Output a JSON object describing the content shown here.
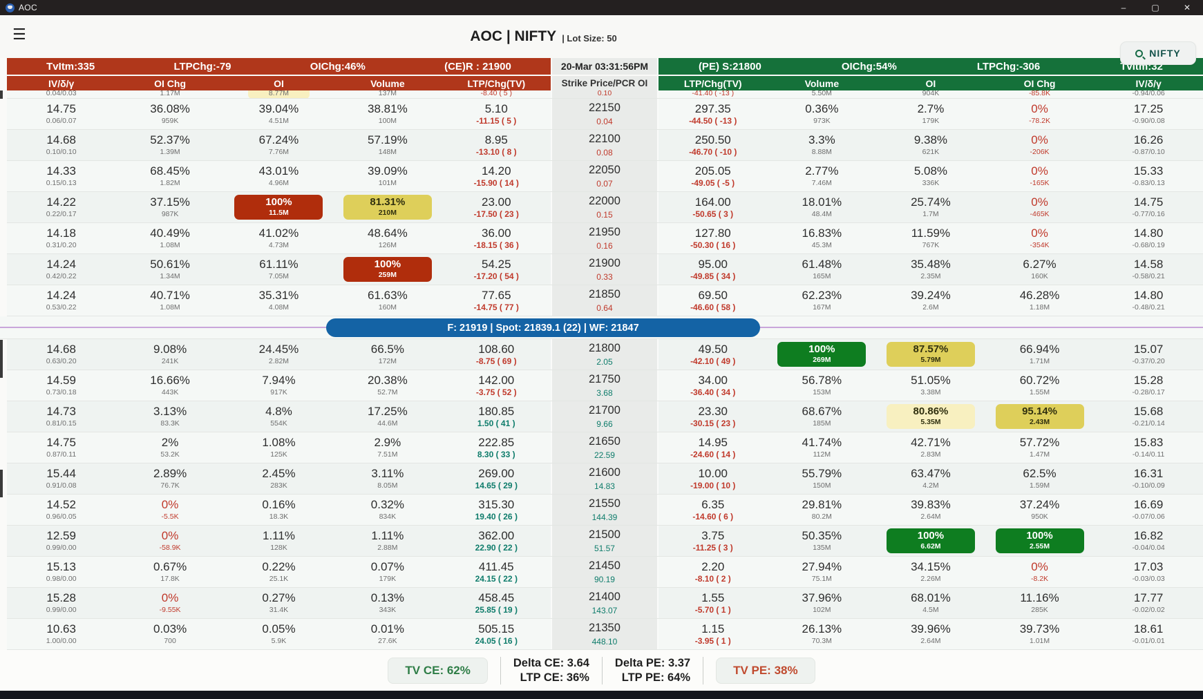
{
  "window": {
    "title": "AOC",
    "minimize": "–",
    "maximize": "▢",
    "close": "✕"
  },
  "header": {
    "title": "AOC | NIFTY",
    "subtitle": "| Lot Size: 50",
    "search_label": "NIFTY"
  },
  "summary": {
    "ce": {
      "tvitm": "TvItm:335",
      "ltpchg": "LTPChg:-79",
      "oichg": "OIChg:46%",
      "resistance": "(CE)R : 21900"
    },
    "timestamp": "20-Mar 03:31:56PM",
    "pe": {
      "support": "(PE) S:21800",
      "oichg": "OIChg:54%",
      "ltpchg": "LTPChg:-306",
      "tvitm": "TvItm:32"
    }
  },
  "columns": {
    "ce": [
      "IV/δ/γ",
      "OI Chg",
      "OI",
      "Volume",
      "LTP/Chg(TV)"
    ],
    "strike": "Strike Price/PCR OI",
    "pe": [
      "LTP/Chg(TV)",
      "Volume",
      "OI",
      "OI Chg",
      "IV/δ/γ"
    ]
  },
  "future_bar": {
    "text": "F: 21919  |  Spot: 21839.1 (22)  |  WF: 21847"
  },
  "footer": {
    "tv_ce": "TV CE: 62%",
    "delta_ce": "Delta CE: 3.64",
    "ltp_ce": "LTP CE: 36%",
    "delta_pe": "Delta PE: 3.37",
    "ltp_pe": "LTP PE: 64%",
    "tv_pe": "TV PE: 38%"
  },
  "table": {
    "partial_row": {
      "ce": [
        {
          "t": "0.04/0.03"
        },
        {
          "t": "1.17M"
        },
        {
          "t": "8.77M",
          "pale": true
        },
        {
          "t": "137M"
        },
        {
          "t": "-8.40 ( 5 )",
          "red": true
        }
      ],
      "strike": {
        "t": "0.10",
        "red": true
      },
      "pe": [
        {
          "t": "-41.40 ( -13 )",
          "red": true
        },
        {
          "t": "5.50M"
        },
        {
          "t": "904K"
        },
        {
          "t": "-85.8K",
          "red": true
        },
        {
          "t": "-0.94/0.06"
        }
      ]
    },
    "rows": [
      {
        "strike": "22150",
        "pcr": "0.04",
        "pc": "red",
        "ce": [
          {
            "v": "14.75",
            "s": "0.06/0.07"
          },
          {
            "v": "36.08%",
            "s": "959K"
          },
          {
            "v": "39.04%",
            "s": "4.51M"
          },
          {
            "v": "38.81%",
            "s": "100M"
          },
          {
            "v": "5.10",
            "s": "-11.15 ( 5 )",
            "sc": "red"
          }
        ],
        "pe": [
          {
            "v": "297.35",
            "s": "-44.50 ( -13 )",
            "sc": "red"
          },
          {
            "v": "0.36%",
            "s": "973K"
          },
          {
            "v": "2.7%",
            "s": "179K"
          },
          {
            "v": "0%",
            "vc": "red",
            "s": "-78.2K",
            "sc": "red"
          },
          {
            "v": "17.25",
            "s": "-0.90/0.08"
          }
        ]
      },
      {
        "strike": "22100",
        "pcr": "0.08",
        "pc": "red",
        "ce": [
          {
            "v": "14.68",
            "s": "0.10/0.10"
          },
          {
            "v": "52.37%",
            "s": "1.39M"
          },
          {
            "v": "67.24%",
            "s": "7.76M"
          },
          {
            "v": "57.19%",
            "s": "148M"
          },
          {
            "v": "8.95",
            "s": "-13.10 ( 8 )",
            "sc": "red"
          }
        ],
        "pe": [
          {
            "v": "250.50",
            "s": "-46.70 ( -10 )",
            "sc": "red"
          },
          {
            "v": "3.3%",
            "s": "8.88M"
          },
          {
            "v": "9.38%",
            "s": "621K"
          },
          {
            "v": "0%",
            "vc": "red",
            "s": "-206K",
            "sc": "red"
          },
          {
            "v": "16.26",
            "s": "-0.87/0.10"
          }
        ]
      },
      {
        "strike": "22050",
        "pcr": "0.07",
        "pc": "red",
        "ce": [
          {
            "v": "14.33",
            "s": "0.15/0.13"
          },
          {
            "v": "68.45%",
            "s": "1.82M"
          },
          {
            "v": "43.01%",
            "s": "4.96M"
          },
          {
            "v": "39.09%",
            "s": "101M"
          },
          {
            "v": "14.20",
            "s": "-15.90 ( 14 )",
            "sc": "red"
          }
        ],
        "pe": [
          {
            "v": "205.05",
            "s": "-49.05 ( -5 )",
            "sc": "red"
          },
          {
            "v": "2.77%",
            "s": "7.46M"
          },
          {
            "v": "5.08%",
            "s": "336K"
          },
          {
            "v": "0%",
            "vc": "red",
            "s": "-165K",
            "sc": "red"
          },
          {
            "v": "15.33",
            "s": "-0.83/0.13"
          }
        ]
      },
      {
        "strike": "22000",
        "pcr": "0.15",
        "pc": "red",
        "ce": [
          {
            "v": "14.22",
            "s": "0.22/0.17"
          },
          {
            "v": "37.15%",
            "s": "987K"
          },
          {
            "v": "100%",
            "s": "11.5M",
            "hl": "red"
          },
          {
            "v": "81.31%",
            "s": "210M",
            "hl": "yellow"
          },
          {
            "v": "23.00",
            "s": "-17.50 ( 23 )",
            "sc": "red"
          }
        ],
        "pe": [
          {
            "v": "164.00",
            "s": "-50.65 ( 3 )",
            "sc": "red"
          },
          {
            "v": "18.01%",
            "s": "48.4M"
          },
          {
            "v": "25.74%",
            "s": "1.7M"
          },
          {
            "v": "0%",
            "vc": "red",
            "s": "-465K",
            "sc": "red"
          },
          {
            "v": "14.75",
            "s": "-0.77/0.16"
          }
        ]
      },
      {
        "strike": "21950",
        "pcr": "0.16",
        "pc": "red",
        "ce": [
          {
            "v": "14.18",
            "s": "0.31/0.20"
          },
          {
            "v": "40.49%",
            "s": "1.08M"
          },
          {
            "v": "41.02%",
            "s": "4.73M"
          },
          {
            "v": "48.64%",
            "s": "126M"
          },
          {
            "v": "36.00",
            "s": "-18.15 ( 36 )",
            "sc": "red"
          }
        ],
        "pe": [
          {
            "v": "127.80",
            "s": "-50.30 ( 16 )",
            "sc": "red"
          },
          {
            "v": "16.83%",
            "s": "45.3M"
          },
          {
            "v": "11.59%",
            "s": "767K"
          },
          {
            "v": "0%",
            "vc": "red",
            "s": "-354K",
            "sc": "red"
          },
          {
            "v": "14.80",
            "s": "-0.68/0.19"
          }
        ]
      },
      {
        "strike": "21900",
        "pcr": "0.33",
        "pc": "red",
        "ce": [
          {
            "v": "14.24",
            "s": "0.42/0.22"
          },
          {
            "v": "50.61%",
            "s": "1.34M"
          },
          {
            "v": "61.11%",
            "s": "7.05M"
          },
          {
            "v": "100%",
            "s": "259M",
            "hl": "red"
          },
          {
            "v": "54.25",
            "s": "-17.20 ( 54 )",
            "sc": "red"
          }
        ],
        "pe": [
          {
            "v": "95.00",
            "s": "-49.85 ( 34 )",
            "sc": "red"
          },
          {
            "v": "61.48%",
            "s": "165M"
          },
          {
            "v": "35.48%",
            "s": "2.35M"
          },
          {
            "v": "6.27%",
            "s": "160K"
          },
          {
            "v": "14.58",
            "s": "-0.58/0.21"
          }
        ]
      },
      {
        "strike": "21850",
        "pcr": "0.64",
        "pc": "red",
        "ce": [
          {
            "v": "14.24",
            "s": "0.53/0.22"
          },
          {
            "v": "40.71%",
            "s": "1.08M"
          },
          {
            "v": "35.31%",
            "s": "4.08M"
          },
          {
            "v": "61.63%",
            "s": "160M"
          },
          {
            "v": "77.65",
            "s": "-14.75 ( 77 )",
            "sc": "red"
          }
        ],
        "pe": [
          {
            "v": "69.50",
            "s": "-46.60 ( 58 )",
            "sc": "red"
          },
          {
            "v": "62.23%",
            "s": "167M"
          },
          {
            "v": "39.24%",
            "s": "2.6M"
          },
          {
            "v": "46.28%",
            "s": "1.18M"
          },
          {
            "v": "14.80",
            "s": "-0.48/0.21"
          }
        ]
      },
      {
        "strike": "21800",
        "pcr": "2.05",
        "pc": "teal",
        "ce": [
          {
            "v": "14.68",
            "s": "0.63/0.20"
          },
          {
            "v": "9.08%",
            "s": "241K"
          },
          {
            "v": "24.45%",
            "s": "2.82M"
          },
          {
            "v": "66.5%",
            "s": "172M"
          },
          {
            "v": "108.60",
            "s": "-8.75 ( 69 )",
            "sc": "red"
          }
        ],
        "pe": [
          {
            "v": "49.50",
            "s": "-42.10 ( 49 )",
            "sc": "red"
          },
          {
            "v": "100%",
            "s": "269M",
            "hl": "green"
          },
          {
            "v": "87.57%",
            "s": "5.79M",
            "hl": "yellow"
          },
          {
            "v": "66.94%",
            "s": "1.71M"
          },
          {
            "v": "15.07",
            "s": "-0.37/0.20"
          }
        ]
      },
      {
        "strike": "21750",
        "pcr": "3.68",
        "pc": "teal",
        "ce": [
          {
            "v": "14.59",
            "s": "0.73/0.18"
          },
          {
            "v": "16.66%",
            "s": "443K"
          },
          {
            "v": "7.94%",
            "s": "917K"
          },
          {
            "v": "20.38%",
            "s": "52.7M"
          },
          {
            "v": "142.00",
            "s": "-3.75 ( 52 )",
            "sc": "red"
          }
        ],
        "pe": [
          {
            "v": "34.00",
            "s": "-36.40 ( 34 )",
            "sc": "red"
          },
          {
            "v": "56.78%",
            "s": "153M"
          },
          {
            "v": "51.05%",
            "s": "3.38M"
          },
          {
            "v": "60.72%",
            "s": "1.55M"
          },
          {
            "v": "15.28",
            "s": "-0.28/0.17"
          }
        ]
      },
      {
        "strike": "21700",
        "pcr": "9.66",
        "pc": "teal",
        "ce": [
          {
            "v": "14.73",
            "s": "0.81/0.15"
          },
          {
            "v": "3.13%",
            "s": "83.3K"
          },
          {
            "v": "4.8%",
            "s": "554K"
          },
          {
            "v": "17.25%",
            "s": "44.6M"
          },
          {
            "v": "180.85",
            "s": "1.50 ( 41 )",
            "sc": "teal"
          }
        ],
        "pe": [
          {
            "v": "23.30",
            "s": "-30.15 ( 23 )",
            "sc": "red"
          },
          {
            "v": "68.67%",
            "s": "185M"
          },
          {
            "v": "80.86%",
            "s": "5.35M",
            "hl": "pale"
          },
          {
            "v": "95.14%",
            "s": "2.43M",
            "hl": "yellow"
          },
          {
            "v": "15.68",
            "s": "-0.21/0.14"
          }
        ]
      },
      {
        "strike": "21650",
        "pcr": "22.59",
        "pc": "teal",
        "ce": [
          {
            "v": "14.75",
            "s": "0.87/0.11"
          },
          {
            "v": "2%",
            "s": "53.2K"
          },
          {
            "v": "1.08%",
            "s": "125K"
          },
          {
            "v": "2.9%",
            "s": "7.51M"
          },
          {
            "v": "222.85",
            "s": "8.30 ( 33 )",
            "sc": "teal"
          }
        ],
        "pe": [
          {
            "v": "14.95",
            "s": "-24.60 ( 14 )",
            "sc": "red"
          },
          {
            "v": "41.74%",
            "s": "112M"
          },
          {
            "v": "42.71%",
            "s": "2.83M"
          },
          {
            "v": "57.72%",
            "s": "1.47M"
          },
          {
            "v": "15.83",
            "s": "-0.14/0.11"
          }
        ]
      },
      {
        "strike": "21600",
        "pcr": "14.83",
        "pc": "teal",
        "ce": [
          {
            "v": "15.44",
            "s": "0.91/0.08"
          },
          {
            "v": "2.89%",
            "s": "76.7K"
          },
          {
            "v": "2.45%",
            "s": "283K"
          },
          {
            "v": "3.11%",
            "s": "8.05M"
          },
          {
            "v": "269.00",
            "s": "14.65 ( 29 )",
            "sc": "teal"
          }
        ],
        "pe": [
          {
            "v": "10.00",
            "s": "-19.00 ( 10 )",
            "sc": "red"
          },
          {
            "v": "55.79%",
            "s": "150M"
          },
          {
            "v": "63.47%",
            "s": "4.2M"
          },
          {
            "v": "62.5%",
            "s": "1.59M"
          },
          {
            "v": "16.31",
            "s": "-0.10/0.09"
          }
        ]
      },
      {
        "strike": "21550",
        "pcr": "144.39",
        "pc": "teal",
        "ce": [
          {
            "v": "14.52",
            "s": "0.96/0.05"
          },
          {
            "v": "0%",
            "vc": "red",
            "s": "-5.5K",
            "sc": "red"
          },
          {
            "v": "0.16%",
            "s": "18.3K"
          },
          {
            "v": "0.32%",
            "s": "834K"
          },
          {
            "v": "315.30",
            "s": "19.40 ( 26 )",
            "sc": "teal"
          }
        ],
        "pe": [
          {
            "v": "6.35",
            "s": "-14.60 ( 6 )",
            "sc": "red"
          },
          {
            "v": "29.81%",
            "s": "80.2M"
          },
          {
            "v": "39.83%",
            "s": "2.64M"
          },
          {
            "v": "37.24%",
            "s": "950K"
          },
          {
            "v": "16.69",
            "s": "-0.07/0.06"
          }
        ]
      },
      {
        "strike": "21500",
        "pcr": "51.57",
        "pc": "teal",
        "ce": [
          {
            "v": "12.59",
            "s": "0.99/0.00"
          },
          {
            "v": "0%",
            "vc": "red",
            "s": "-58.9K",
            "sc": "red"
          },
          {
            "v": "1.11%",
            "s": "128K"
          },
          {
            "v": "1.11%",
            "s": "2.88M"
          },
          {
            "v": "362.00",
            "s": "22.90 ( 22 )",
            "sc": "teal"
          }
        ],
        "pe": [
          {
            "v": "3.75",
            "s": "-11.25 ( 3 )",
            "sc": "red"
          },
          {
            "v": "50.35%",
            "s": "135M"
          },
          {
            "v": "100%",
            "s": "6.62M",
            "hl": "green"
          },
          {
            "v": "100%",
            "s": "2.55M",
            "hl": "green"
          },
          {
            "v": "16.82",
            "s": "-0.04/0.04"
          }
        ]
      },
      {
        "strike": "21450",
        "pcr": "90.19",
        "pc": "teal",
        "ce": [
          {
            "v": "15.13",
            "s": "0.98/0.00"
          },
          {
            "v": "0.67%",
            "s": "17.8K"
          },
          {
            "v": "0.22%",
            "s": "25.1K"
          },
          {
            "v": "0.07%",
            "s": "179K"
          },
          {
            "v": "411.45",
            "s": "24.15 ( 22 )",
            "sc": "teal"
          }
        ],
        "pe": [
          {
            "v": "2.20",
            "s": "-8.10 ( 2 )",
            "sc": "red"
          },
          {
            "v": "27.94%",
            "s": "75.1M"
          },
          {
            "v": "34.15%",
            "s": "2.26M"
          },
          {
            "v": "0%",
            "vc": "red",
            "s": "-8.2K",
            "sc": "red"
          },
          {
            "v": "17.03",
            "s": "-0.03/0.03"
          }
        ]
      },
      {
        "strike": "21400",
        "pcr": "143.07",
        "pc": "teal",
        "ce": [
          {
            "v": "15.28",
            "s": "0.99/0.00"
          },
          {
            "v": "0%",
            "vc": "red",
            "s": "-9.55K",
            "sc": "red"
          },
          {
            "v": "0.27%",
            "s": "31.4K"
          },
          {
            "v": "0.13%",
            "s": "343K"
          },
          {
            "v": "458.45",
            "s": "25.85 ( 19 )",
            "sc": "teal"
          }
        ],
        "pe": [
          {
            "v": "1.55",
            "s": "-5.70 ( 1 )",
            "sc": "red"
          },
          {
            "v": "37.96%",
            "s": "102M"
          },
          {
            "v": "68.01%",
            "s": "4.5M"
          },
          {
            "v": "11.16%",
            "s": "285K"
          },
          {
            "v": "17.77",
            "s": "-0.02/0.02"
          }
        ]
      },
      {
        "strike": "21350",
        "pcr": "448.10",
        "pc": "teal",
        "ce": [
          {
            "v": "10.63",
            "s": "1.00/0.00"
          },
          {
            "v": "0.03%",
            "s": "700"
          },
          {
            "v": "0.05%",
            "s": "5.9K"
          },
          {
            "v": "0.01%",
            "s": "27.6K"
          },
          {
            "v": "505.15",
            "s": "24.05 ( 16 )",
            "sc": "teal"
          }
        ],
        "pe": [
          {
            "v": "1.15",
            "s": "-3.95 ( 1 )",
            "sc": "red"
          },
          {
            "v": "26.13%",
            "s": "70.3M"
          },
          {
            "v": "39.96%",
            "s": "2.64M"
          },
          {
            "v": "39.73%",
            "s": "1.01M"
          },
          {
            "v": "18.61",
            "s": "-0.01/0.01"
          }
        ]
      }
    ]
  }
}
